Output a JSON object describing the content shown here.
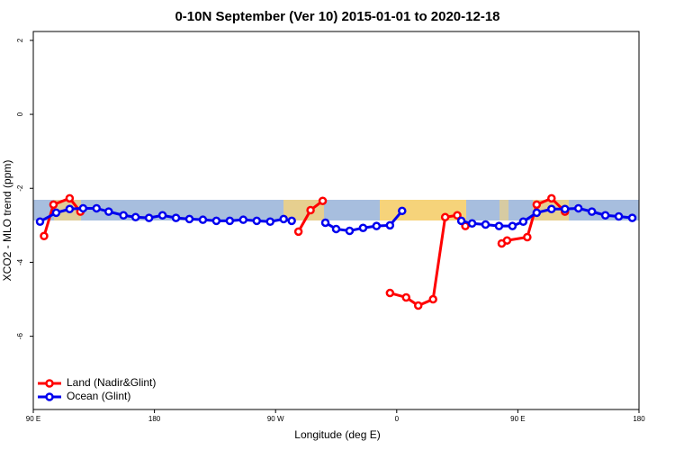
{
  "chart_data": {
    "type": "line",
    "title": "0-10N September (Ver 10)   2015-01-01 to 2020-12-18",
    "x_label": "Longitude (deg E)",
    "y_label": "XCO2 - MLO trend (ppm)",
    "xlim": [
      90,
      540
    ],
    "ylim": [
      -7.98,
      2.24
    ],
    "xticks": [
      {
        "value": 90,
        "label": "90 E"
      },
      180,
      {
        "value": 270,
        "label": "90 W"
      },
      {
        "value": 360,
        "label": "0"
      },
      {
        "value": 450,
        "label": "90 E"
      },
      {
        "value": 540,
        "label": "180"
      }
    ],
    "yticks": [
      -6,
      -4,
      -2,
      0,
      2
    ],
    "legend": "bottom-left",
    "series": [
      {
        "name": "Land (Nadir&Glint)",
        "color": "#ff0000",
        "x": [
          98,
          105,
          117,
          125,
          null,
          287,
          296,
          305,
          null,
          355,
          367,
          376,
          387,
          396,
          405,
          411,
          null,
          438,
          442,
          457,
          464,
          475,
          485
        ],
        "values": [
          -3.29,
          -2.44,
          -2.27,
          -2.63,
          null,
          -3.17,
          -2.59,
          -2.34,
          null,
          -4.83,
          -4.95,
          -5.17,
          -5.0,
          -2.78,
          -2.73,
          -3.02,
          null,
          -3.49,
          -3.41,
          -3.32,
          -2.44,
          -2.27,
          -2.63
        ]
      },
      {
        "name": "Ocean (Glint)",
        "color": "#0000ee",
        "x": [
          95,
          107,
          117,
          127,
          137,
          146,
          157,
          166,
          176,
          186,
          196,
          206,
          216,
          226,
          236,
          246,
          256,
          266,
          276,
          282,
          null,
          307,
          315,
          325,
          335,
          345,
          355,
          364,
          null,
          408,
          416,
          426,
          436,
          446,
          454,
          464,
          475,
          485,
          495,
          505,
          515,
          525,
          535
        ],
        "values": [
          -2.9,
          -2.66,
          -2.56,
          -2.54,
          -2.54,
          -2.63,
          -2.73,
          -2.78,
          -2.8,
          -2.73,
          -2.8,
          -2.83,
          -2.85,
          -2.88,
          -2.88,
          -2.85,
          -2.88,
          -2.9,
          -2.83,
          -2.88,
          null,
          -2.93,
          -3.1,
          -3.15,
          -3.07,
          -3.02,
          -3.0,
          -2.61,
          null,
          -2.88,
          -2.95,
          -2.98,
          -3.02,
          -3.02,
          -2.9,
          -2.66,
          -2.56,
          -2.56,
          -2.54,
          -2.63,
          -2.73,
          -2.76,
          -2.8
        ]
      }
    ]
  }
}
